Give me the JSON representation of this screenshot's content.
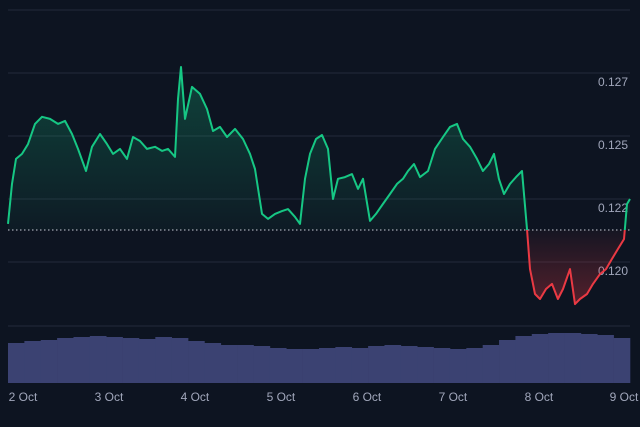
{
  "chart_data": {
    "type": "line",
    "x": [
      1.826,
      1.873,
      1.919,
      1.989,
      2.059,
      2.14,
      2.221,
      2.314,
      2.407,
      2.489,
      2.57,
      2.64,
      2.733,
      2.803,
      2.896,
      2.977,
      3.047,
      3.128,
      3.21,
      3.28,
      3.361,
      3.442,
      3.535,
      3.617,
      3.686,
      3.768,
      3.803,
      3.838,
      3.884,
      3.966,
      4.059,
      4.14,
      4.21,
      4.291,
      4.373,
      4.466,
      4.559,
      4.64,
      4.698,
      4.78,
      4.849,
      4.931,
      5.012,
      5.082,
      5.163,
      5.221,
      5.28,
      5.338,
      5.408,
      5.477,
      5.547,
      5.605,
      5.663,
      5.745,
      5.826,
      5.896,
      5.954,
      6.035,
      6.105,
      6.186,
      6.268,
      6.349,
      6.419,
      6.477,
      6.547,
      6.617,
      6.71,
      6.791,
      6.884,
      6.966,
      7.047,
      7.117,
      7.198,
      7.28,
      7.349,
      7.419,
      7.477,
      7.535,
      7.594,
      7.663,
      7.733,
      7.803,
      7.861,
      7.896,
      7.954,
      8.012,
      8.082,
      8.152,
      8.221,
      8.28,
      8.361,
      8.419,
      8.477,
      8.559,
      8.629,
      8.71,
      8.78,
      8.849,
      8.919,
      8.989,
      9.024,
      9.059
    ],
    "values": [
      0.12151,
      0.1231,
      0.12409,
      0.12429,
      0.12468,
      0.12548,
      0.12576,
      0.12568,
      0.12548,
      0.1256,
      0.12508,
      0.12449,
      0.12361,
      0.12457,
      0.12508,
      0.12468,
      0.12429,
      0.12449,
      0.12409,
      0.12496,
      0.1248,
      0.12449,
      0.12457,
      0.12441,
      0.12449,
      0.12417,
      0.12647,
      0.12774,
      0.12568,
      0.12695,
      0.12667,
      0.12607,
      0.1252,
      0.12536,
      0.12496,
      0.12528,
      0.12488,
      0.12429,
      0.12369,
      0.12191,
      0.12171,
      0.12191,
      0.12202,
      0.1221,
      0.12179,
      0.12151,
      0.1233,
      0.12429,
      0.12488,
      0.12504,
      0.12449,
      0.1225,
      0.1233,
      0.12337,
      0.12349,
      0.1229,
      0.1233,
      0.12163,
      0.12191,
      0.1223,
      0.1227,
      0.1231,
      0.1233,
      0.12361,
      0.12389,
      0.12337,
      0.12361,
      0.12449,
      0.12496,
      0.12536,
      0.12548,
      0.12488,
      0.12457,
      0.12409,
      0.12361,
      0.12389,
      0.12429,
      0.1233,
      0.1227,
      0.1231,
      0.12337,
      0.12361,
      0.12131,
      0.11972,
      0.11873,
      0.11853,
      0.11893,
      0.11913,
      0.11853,
      0.11893,
      0.11972,
      0.11833,
      0.11853,
      0.11873,
      0.11913,
      0.11952,
      0.11972,
      0.12012,
      0.12052,
      0.12091,
      0.1223,
      0.1225
    ],
    "baseline": 0.12127,
    "up_color": "#16c784",
    "down_color": "#ea3943",
    "xlim": [
      1.826,
      9.059
    ],
    "xticks": [
      {
        "value": 2,
        "label": "2 Oct"
      },
      {
        "value": 3,
        "label": "3 Oct"
      },
      {
        "value": 4,
        "label": "4 Oct"
      },
      {
        "value": 5,
        "label": "5 Oct"
      },
      {
        "value": 6,
        "label": "6 Oct"
      },
      {
        "value": 7,
        "label": "7 Oct"
      },
      {
        "value": 8,
        "label": "8 Oct"
      },
      {
        "value": 9,
        "label": "9 Oct"
      }
    ],
    "ylim": [
      0.1175,
      0.13
    ],
    "yticks": [
      {
        "value": 0.12,
        "label": "0.120"
      },
      {
        "value": 0.1225,
        "label": "0.122"
      },
      {
        "value": 0.125,
        "label": "0.125"
      },
      {
        "value": 0.1275,
        "label": "0.127"
      }
    ],
    "grid": true,
    "volume": {
      "color": "#3b4272",
      "ylim": [
        0,
        60
      ],
      "values": [
        40,
        42,
        43,
        45,
        46,
        47,
        46,
        45,
        44,
        46,
        45,
        42,
        40,
        38,
        38,
        37,
        35,
        34,
        34,
        35,
        36,
        35,
        37,
        38,
        37,
        36,
        35,
        34,
        35,
        38,
        43,
        47,
        49,
        50,
        50,
        49,
        48,
        45
      ]
    }
  }
}
